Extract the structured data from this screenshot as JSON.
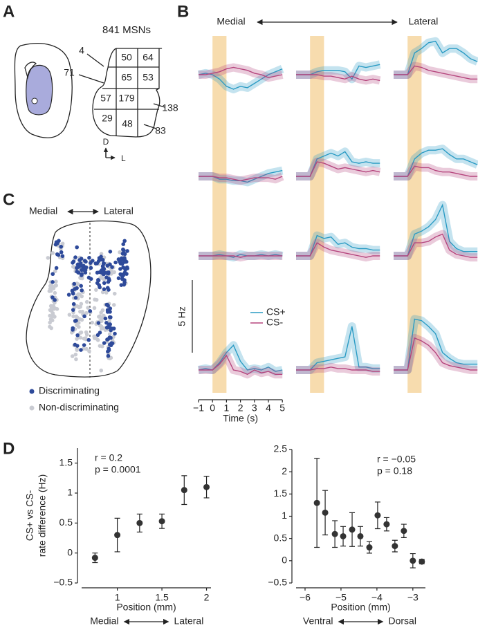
{
  "panels": {
    "a": "A",
    "b": "B",
    "c": "C",
    "d": "D"
  },
  "panel_a": {
    "title": "841 MSNs",
    "cells": [
      50,
      64,
      65,
      53,
      57,
      179,
      29,
      48
    ],
    "outside": [
      4,
      71,
      138,
      83
    ],
    "axes": {
      "dorsal": "D",
      "lateral": "L"
    }
  },
  "panel_c": {
    "medial": "Medial",
    "lateral": "Lateral",
    "legend": [
      {
        "name": "Discriminating",
        "color": "#2e4a9a"
      },
      {
        "name": "Non-discriminating",
        "color": "#c9cbd2"
      }
    ]
  },
  "chart_data": [
    {
      "type": "line",
      "labels": {
        "medial": "Medial",
        "lateral": "Lateral"
      },
      "xlabel": "Time (s)",
      "x": [
        -1,
        -0.5,
        0,
        0.5,
        1,
        1.5,
        2,
        2.5,
        3,
        3.5,
        4,
        4.5,
        5
      ],
      "xlim": [
        -1,
        5
      ],
      "xticks": [
        {
          "value": -1,
          "label": "−1"
        },
        0,
        1,
        2,
        3,
        4,
        5
      ],
      "stimulus": [
        0,
        1
      ],
      "stimulus_color": "#f7dcae",
      "scale_bar": {
        "value": 5,
        "label": "5 Hz"
      },
      "series": [
        {
          "name": "CS+",
          "color": "#2a9bc4",
          "values": [
            [
              0,
              0.1,
              0,
              -0.3,
              -0.8,
              -1,
              -0.8,
              -0.9,
              -0.6,
              -0.3,
              0,
              0.2,
              0.4
            ],
            [
              0,
              0,
              0,
              0.2,
              0.3,
              0.3,
              0.3,
              0.2,
              -0.3,
              0.6,
              0.5,
              0.6,
              0.7
            ],
            [
              0,
              0,
              0,
              1.5,
              1.8,
              2.2,
              2.3,
              1.5,
              1.8,
              1.8,
              1.5,
              1.1,
              0.9
            ],
            [
              0,
              0,
              0,
              -0.2,
              -0.2,
              -0.3,
              -0.3,
              -0.4,
              -0.2,
              0,
              0.2,
              0.3,
              0.4
            ],
            [
              0,
              0,
              0,
              1.2,
              1.4,
              1.6,
              1.4,
              1.7,
              1.0,
              0.9,
              1.0,
              0.9,
              0.9
            ],
            [
              0,
              0,
              0,
              1.2,
              1.6,
              1.8,
              1.8,
              1.9,
              1.5,
              1.2,
              1.2,
              1.0,
              0.8
            ],
            [
              0,
              0,
              0,
              0.1,
              0,
              -0.1,
              0.1,
              0,
              0,
              0.1,
              0,
              0.1,
              0
            ],
            [
              0,
              0,
              0,
              1.4,
              1.2,
              1.3,
              0.8,
              0.9,
              0.6,
              0.5,
              0.5,
              0.4,
              0.4
            ],
            [
              0,
              0,
              0,
              1.5,
              1.7,
              2.0,
              2.5,
              3.5,
              1.0,
              0.5,
              0.3,
              0.3,
              0.3
            ],
            [
              0,
              0.1,
              0,
              0.5,
              1.2,
              1.7,
              0.6,
              0,
              0.1,
              0,
              0.2,
              -0.1,
              0
            ],
            [
              0,
              0,
              0,
              0.5,
              0.6,
              0.7,
              0.8,
              0.9,
              3.0,
              0.2,
              0.2,
              0.1,
              0.1
            ],
            [
              0,
              0,
              0,
              3.5,
              3.4,
              3.0,
              2.5,
              1.2,
              0.8,
              0.5,
              0.4,
              0.4,
              0.4
            ]
          ]
        },
        {
          "name": "CS-",
          "color": "#b5457d",
          "values": [
            [
              0,
              0,
              0.1,
              0.2,
              0.4,
              0.5,
              0.4,
              0.3,
              0.1,
              0,
              -0.2,
              -0.1,
              0
            ],
            [
              0,
              0,
              0,
              0,
              -0.1,
              -0.1,
              -0.2,
              -0.3,
              -0.1,
              -0.3,
              -0.4,
              -0.3,
              -0.4
            ],
            [
              0,
              0,
              0,
              0.6,
              0.5,
              0.3,
              0.2,
              0.1,
              0,
              -0.1,
              -0.2,
              -0.3,
              -0.3
            ],
            [
              0,
              0,
              0,
              -0.1,
              -0.1,
              -0.2,
              -0.3,
              -0.2,
              -0.1,
              -0.1,
              -0.1,
              -0.2,
              0
            ],
            [
              0,
              0,
              0,
              1.0,
              0.9,
              0.7,
              0.5,
              0.6,
              0.5,
              0.4,
              0.3,
              0.4,
              0.3
            ],
            [
              0,
              0,
              0,
              0.7,
              0.6,
              0.6,
              0.4,
              0.3,
              0.3,
              0.2,
              0.1,
              0,
              0
            ],
            [
              0,
              0,
              0,
              0,
              0,
              0,
              -0.1,
              0,
              0,
              0,
              0,
              0,
              0
            ],
            [
              0,
              0,
              0,
              0.9,
              0.6,
              0.4,
              0.3,
              0.2,
              0.1,
              0,
              -0.1,
              0,
              0
            ],
            [
              0,
              0,
              0,
              0.9,
              0.9,
              1.0,
              1.3,
              1.5,
              0.4,
              0.1,
              0,
              -0.1,
              -0.1
            ],
            [
              0,
              0,
              0,
              0.4,
              1.0,
              0,
              -0.1,
              -0.3,
              0,
              -0.2,
              -0.1,
              -0.3,
              -0.3
            ],
            [
              0,
              0,
              0,
              0.1,
              0.1,
              0.2,
              0.1,
              0.1,
              0,
              0,
              0,
              -0.1,
              -0.1
            ],
            [
              0,
              0,
              0,
              2.2,
              2.0,
              1.7,
              1.2,
              0.5,
              0.3,
              0.2,
              0.1,
              0,
              0
            ]
          ]
        }
      ]
    },
    {
      "type": "errorbar",
      "annotations": [
        "r = 0.2",
        "p = 0.0001"
      ],
      "xlabel": "Position (mm)",
      "ylabel": [
        "CS+ vs CS-",
        "rate difference (Hz)"
      ],
      "directions": [
        "Medial",
        "Lateral"
      ],
      "x": [
        0.75,
        1,
        1.25,
        1.5,
        1.75,
        2
      ],
      "values": [
        -0.08,
        0.3,
        0.5,
        0.53,
        1.05,
        1.1
      ],
      "errors": [
        0.08,
        0.28,
        0.15,
        0.12,
        0.24,
        0.18
      ],
      "color": "#333333",
      "xlim": [
        0.6,
        2.05
      ],
      "xticks": [
        1,
        1.5,
        2
      ],
      "ylim": [
        -0.5,
        1.75
      ],
      "yticks": [
        {
          "value": -0.5,
          "label": "−0.5"
        },
        0,
        0.5,
        1,
        1.5
      ]
    },
    {
      "type": "errorbar",
      "annotations": [
        "r = −0.05",
        "p = 0.18"
      ],
      "xlabel": "Position (mm)",
      "directions": [
        "Ventral",
        "Dorsal"
      ],
      "x": [
        -5.67,
        -5.44,
        -5.17,
        -4.94,
        -4.69,
        -4.46,
        -4.21,
        -3.98,
        -3.73,
        -3.5,
        -3.25,
        -3.0,
        -2.75
      ],
      "values": [
        1.3,
        1.08,
        0.6,
        0.55,
        0.7,
        0.55,
        0.3,
        1.02,
        0.82,
        0.33,
        0.67,
        0.0,
        -0.02
      ],
      "errors": [
        1.0,
        0.5,
        0.3,
        0.22,
        0.38,
        0.22,
        0.13,
        0.3,
        0.15,
        0.13,
        0.15,
        0.16,
        0.05
      ],
      "color": "#333333",
      "xlim": [
        -6.25,
        -2.65
      ],
      "xticks": [
        {
          "value": -6,
          "label": "−6"
        },
        {
          "value": -5,
          "label": "−5"
        },
        {
          "value": -4,
          "label": "−4"
        },
        {
          "value": -3,
          "label": "−3"
        }
      ],
      "ylim": [
        -0.5,
        2.5
      ],
      "yticks": [
        {
          "value": -0.5,
          "label": "−0.5"
        },
        0,
        0.5,
        1,
        1.5,
        2,
        2.5
      ]
    }
  ]
}
